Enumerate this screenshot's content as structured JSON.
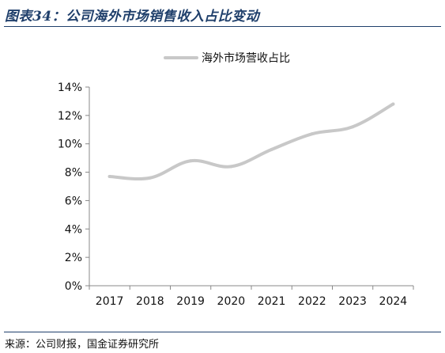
{
  "figure": {
    "title": "图表34：公司海外市场销售收入占比变动",
    "source": "来源：公司财报，国金证券研究所"
  },
  "colors": {
    "title": "#1f3f6b",
    "rule": "#1f3f6b",
    "series": "#c8c8c8",
    "axis": "#888888",
    "text": "#111111"
  },
  "chart_data": {
    "type": "line",
    "title": "",
    "xlabel": "",
    "ylabel": "",
    "categories": [
      "2017",
      "2018",
      "2019",
      "2020",
      "2021",
      "2022",
      "2023",
      "2024"
    ],
    "series": [
      {
        "name": "海外市场营收占比",
        "values": [
          7.7,
          7.6,
          8.8,
          8.4,
          9.6,
          10.7,
          11.2,
          12.8
        ]
      }
    ],
    "ylim": [
      0,
      14
    ],
    "yticks": [
      0,
      2,
      4,
      6,
      8,
      10,
      12,
      14
    ],
    "ytick_labels": [
      "0%",
      "2%",
      "4%",
      "6%",
      "8%",
      "10%",
      "12%",
      "14%"
    ],
    "grid": false,
    "legend": "top-center"
  }
}
